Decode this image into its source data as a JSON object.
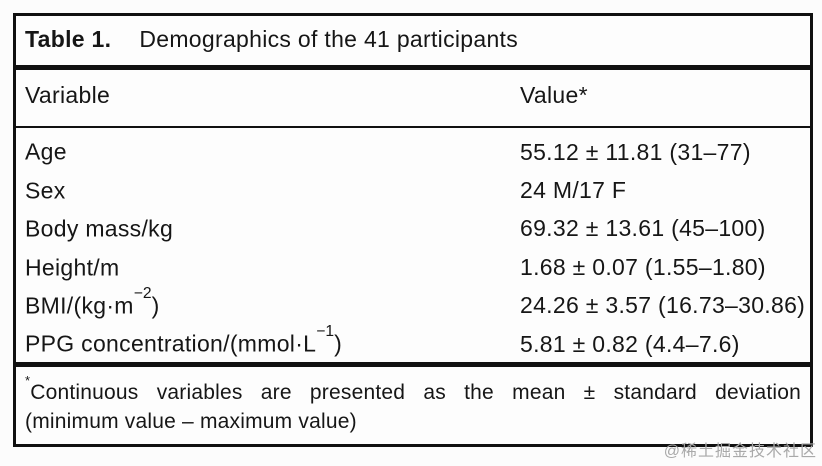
{
  "colors": {
    "frame_border": "#101010",
    "text": "#161616",
    "rule": "#111111",
    "background": "#fdfdfd",
    "watermark": "#a9a9a9"
  },
  "table": {
    "label": "Table 1.",
    "title": "Demographics of the 41 participants",
    "columns": {
      "variable": "Variable",
      "value": "Value*"
    },
    "rows": [
      {
        "label": "Age",
        "label_sup": "",
        "label_suffix": "",
        "value": "55.12 ± 11.81 (31–77)"
      },
      {
        "label": "Sex",
        "label_sup": "",
        "label_suffix": "",
        "value": "24 M/17 F"
      },
      {
        "label": "Body mass/kg",
        "label_sup": "",
        "label_suffix": "",
        "value": "69.32 ± 13.61 (45–100)"
      },
      {
        "label": "Height/m",
        "label_sup": "",
        "label_suffix": "",
        "value": "1.68 ± 0.07 (1.55–1.80)"
      },
      {
        "label": "BMI/(kg·m",
        "label_sup": "−2",
        "label_suffix": ")",
        "value": "24.26 ± 3.57 (16.73–30.86)"
      },
      {
        "label": "PPG concentration/(mmol·L",
        "label_sup": "−1",
        "label_suffix": ")",
        "value": "5.81 ± 0.82 (4.4–7.6)"
      }
    ],
    "footnote": {
      "marker": "*",
      "line1": "Continuous variables are presented as the mean ± standard deviation",
      "line2": "(minimum value – maximum value)"
    }
  },
  "watermark": "@稀土掘金技术社区"
}
